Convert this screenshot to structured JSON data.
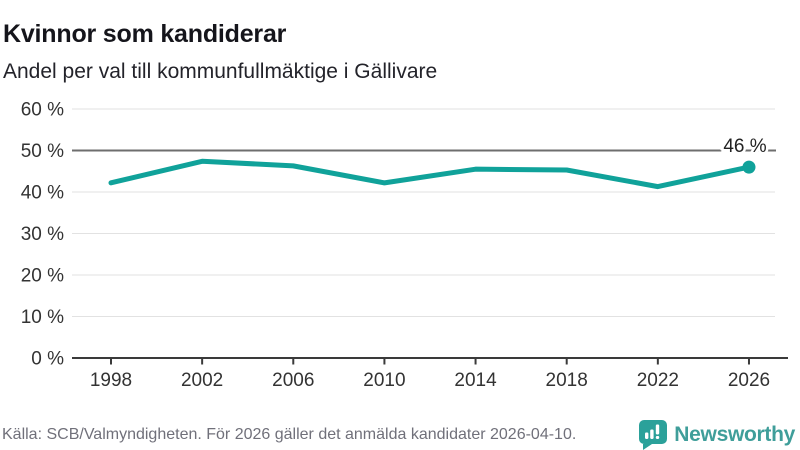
{
  "header": {
    "title": "Kvinnor som kandiderar",
    "subtitle": "Andel per val till kommunfullmäktige i Gällivare"
  },
  "chart_data": {
    "type": "line",
    "title": "Kvinnor som kandiderar",
    "subtitle": "Andel per val till kommunfullmäktige i Gällivare",
    "x": [
      1998,
      2002,
      2006,
      2010,
      2014,
      2018,
      2022,
      2026
    ],
    "values": [
      42.2,
      47.4,
      46.3,
      42.2,
      45.5,
      45.3,
      41.3,
      46.0
    ],
    "end_label": "46 %",
    "xlabel": "",
    "ylabel": "",
    "ylim": [
      0,
      60
    ],
    "yticks": [
      0,
      10,
      20,
      30,
      40,
      50,
      60
    ],
    "ytick_suffix": " %",
    "reference_line": 50,
    "grid": true,
    "legend": "none",
    "colors": {
      "line": "#10a29a",
      "marker": "#10a29a",
      "grid": "#e2e2e2",
      "reference": "#6e6e6e",
      "axis": "#3a3a3a",
      "tick_label": "#333333"
    }
  },
  "footer": {
    "source": "Källa: SCB/Valmyndigheten. För 2026 gäller det anmälda kandidater 2026-04-10.",
    "brand": "Newsworthy",
    "brand_color": "#3f9e9a",
    "icon_color": "#2ba19a"
  }
}
